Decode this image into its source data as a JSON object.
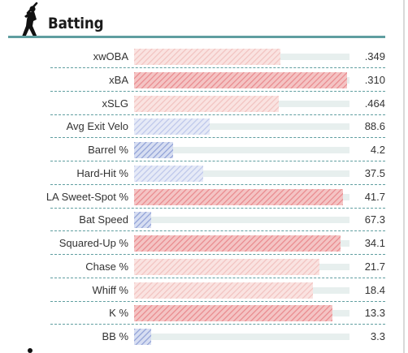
{
  "section": {
    "title": "Batting",
    "icon": "batter-silhouette-icon",
    "accent_color": "#5f9ea0"
  },
  "colors": {
    "hot_strong": "#e9888c",
    "hot_light": "#f1c2bf",
    "cold_strong": "#8e9fd6",
    "cold_light": "#bcc6ea"
  },
  "metrics": [
    {
      "label": "xwOBA",
      "value": ".349",
      "percentile": 68,
      "color": "hot_light"
    },
    {
      "label": "xBA",
      "value": ".310",
      "percentile": 99,
      "color": "hot_strong"
    },
    {
      "label": "xSLG",
      "value": ".464",
      "percentile": 67,
      "color": "hot_light"
    },
    {
      "label": "Avg Exit Velo",
      "value": "88.6",
      "percentile": 35,
      "color": "cold_light"
    },
    {
      "label": "Barrel %",
      "value": "4.2",
      "percentile": 18,
      "color": "cold_strong"
    },
    {
      "label": "Hard-Hit %",
      "value": "37.5",
      "percentile": 32,
      "color": "cold_light"
    },
    {
      "label": "LA Sweet-Spot %",
      "value": "41.7",
      "percentile": 97,
      "color": "hot_strong"
    },
    {
      "label": "Bat Speed",
      "value": "67.3",
      "percentile": 8,
      "color": "cold_strong"
    },
    {
      "label": "Squared-Up %",
      "value": "34.1",
      "percentile": 96,
      "color": "hot_strong"
    },
    {
      "label": "Chase %",
      "value": "21.7",
      "percentile": 86,
      "color": "hot_light"
    },
    {
      "label": "Whiff %",
      "value": "18.4",
      "percentile": 83,
      "color": "hot_light"
    },
    {
      "label": "K %",
      "value": "13.3",
      "percentile": 92,
      "color": "hot_strong"
    },
    {
      "label": "BB %",
      "value": "3.3",
      "percentile": 8,
      "color": "cold_strong"
    }
  ]
}
